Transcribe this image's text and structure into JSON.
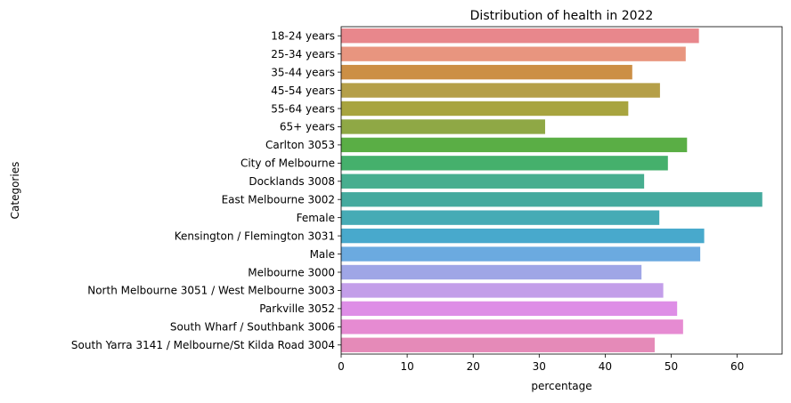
{
  "chart_data": {
    "type": "bar",
    "orientation": "horizontal",
    "title": "Distribution of health in 2022",
    "xlabel": "percentage",
    "ylabel": "Categories",
    "xlim": [
      0,
      66.8
    ],
    "xticks": [
      0,
      10,
      20,
      30,
      40,
      50,
      60
    ],
    "grid": false,
    "categories": [
      "18-24 years",
      "25-34 years",
      "35-44 years",
      "45-54 years",
      "55-64 years",
      "65+ years",
      "Carlton 3053",
      "City of Melbourne",
      "Docklands 3008",
      "East Melbourne 3002",
      "Female",
      "Kensington / Flemington 3031",
      "Male",
      "Melbourne 3000",
      "North Melbourne 3051 / West Melbourne 3003",
      "Parkville 3052",
      "South Wharf / Southbank 3006",
      "South Yarra 3141 / Melbourne/St Kilda Road 3004"
    ],
    "values": [
      54.2,
      52.2,
      44.1,
      48.3,
      43.5,
      30.9,
      52.4,
      49.5,
      45.9,
      63.8,
      48.2,
      55.0,
      54.4,
      45.5,
      48.8,
      50.9,
      51.8,
      47.5
    ],
    "colors": [
      "#e8878c",
      "#e8957f",
      "#cc8f45",
      "#b59f48",
      "#a8a43f",
      "#8fa845",
      "#5aae45",
      "#45b06c",
      "#47ae8f",
      "#45aa9e",
      "#46abb5",
      "#48a9cc",
      "#6baae0",
      "#9fa6e6",
      "#c39ee9",
      "#de8ee6",
      "#e68bd2",
      "#e58ab8"
    ]
  }
}
